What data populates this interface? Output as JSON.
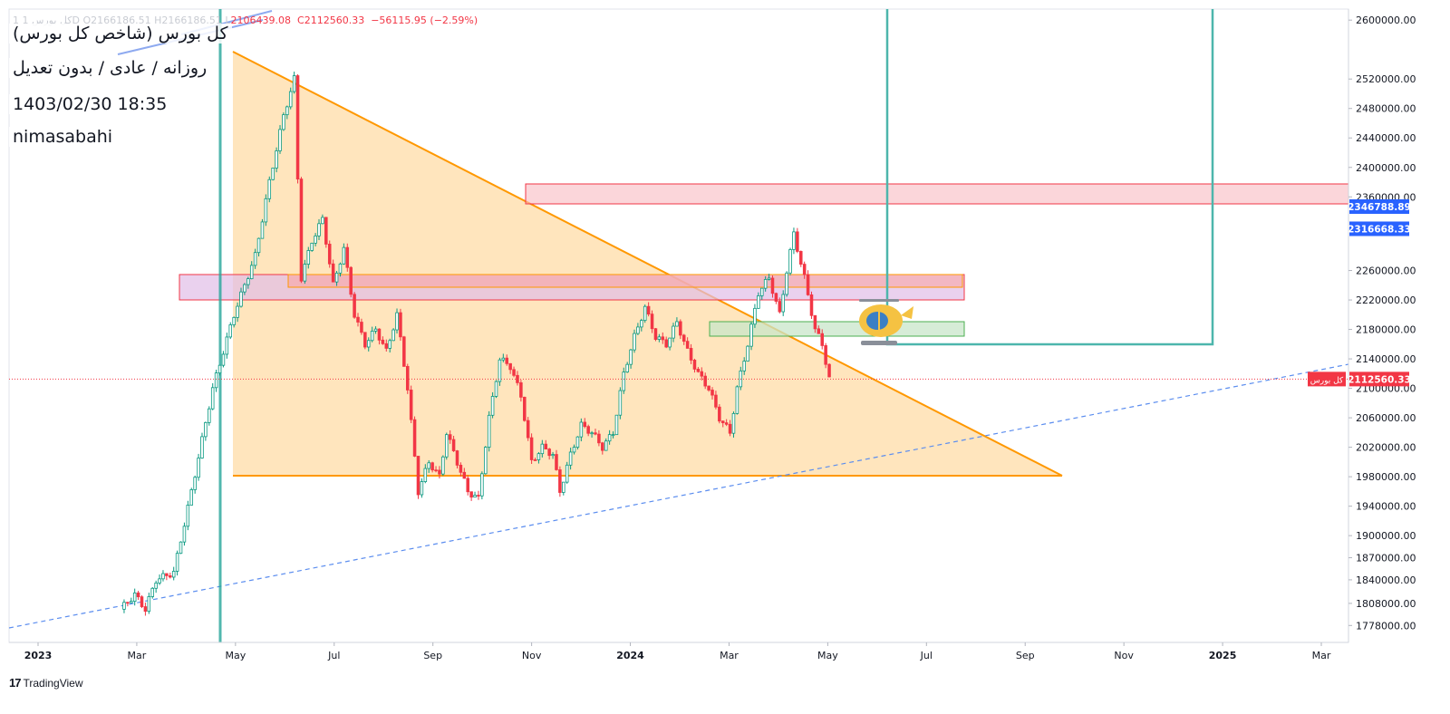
{
  "ohlc": {
    "faded": "1  کل بورس  1D  O2166186.51  H2166186.51  L",
    "low": "2106439.08",
    "close": "C2112560.33",
    "change": "−56115.95 (−2.59%)"
  },
  "info": {
    "title": "کل بورس (شاخص کل بورس)",
    "subtitle": "روزانه / عادی / بدون تعدیل",
    "datetime": "1403/02/30 18:35",
    "author": "nimasabahi"
  },
  "brand": {
    "logo": "17",
    "name": "TradingView"
  },
  "colors": {
    "up": "#089981",
    "down": "#f23645",
    "triangle_fill": "#ffe0b2",
    "triangle_line": "#ff9800",
    "trend": "#5b8def",
    "teal": "#4db6ac",
    "badge_blue": "#2962ff",
    "badge_red": "#f23645"
  },
  "chart_data": {
    "type": "candlestick",
    "ylim": [
      1755000,
      2615000
    ],
    "price_ticks": [
      2600000,
      2520000,
      2480000,
      2440000,
      2400000,
      2360000,
      2260000,
      2220000,
      2180000,
      2140000,
      2100000,
      2060000,
      2020000,
      1980000,
      1940000,
      1900000,
      1870000,
      1840000,
      1808000,
      1778000
    ],
    "price_tick_labels": [
      "2600000.00",
      "2520000.00",
      "2480000.00",
      "2440000.00",
      "2400000.00",
      "2360000.00",
      "2260000.00",
      "2220000.00",
      "2180000.00",
      "2140000.00",
      "2100000.00",
      "2060000.00",
      "2020000.00",
      "1980000.00",
      "1940000.00",
      "1900000.00",
      "1870000.00",
      "1840000.00",
      "1808000.00",
      "1778000.00"
    ],
    "time_ticks": [
      {
        "label": "2023",
        "bold": true
      },
      {
        "label": "Mar",
        "bold": false
      },
      {
        "label": "May",
        "bold": false
      },
      {
        "label": "Jul",
        "bold": false
      },
      {
        "label": "Sep",
        "bold": false
      },
      {
        "label": "Nov",
        "bold": false
      },
      {
        "label": "2024",
        "bold": true
      },
      {
        "label": "Mar",
        "bold": false
      },
      {
        "label": "May",
        "bold": false
      },
      {
        "label": "Jul",
        "bold": false
      },
      {
        "label": "Sep",
        "bold": false
      },
      {
        "label": "Nov",
        "bold": false
      },
      {
        "label": "2025",
        "bold": true
      },
      {
        "label": "Mar",
        "bold": false
      }
    ],
    "badges": [
      {
        "label": "2346788.89",
        "price": 2346788.89,
        "color": "#2962ff"
      },
      {
        "label": "2316668.33",
        "price": 2316668.33,
        "color": "#2962ff"
      },
      {
        "label": "2112560.33",
        "price": 2112560.33,
        "color": "#f23645"
      }
    ],
    "symbol_tag": "کل بورس",
    "last_price": 2112560.33,
    "close_path": [
      [
        0.0,
        1800000
      ],
      [
        0.02,
        1820000
      ],
      [
        0.035,
        1800000
      ],
      [
        0.05,
        1840000
      ],
      [
        0.075,
        1850000
      ],
      [
        0.1,
        1960000
      ],
      [
        0.13,
        2100000
      ],
      [
        0.16,
        2200000
      ],
      [
        0.19,
        2280000
      ],
      [
        0.21,
        2380000
      ],
      [
        0.23,
        2470000
      ],
      [
        0.245,
        2520000
      ],
      [
        0.255,
        2250000
      ],
      [
        0.27,
        2300000
      ],
      [
        0.285,
        2330000
      ],
      [
        0.3,
        2240000
      ],
      [
        0.315,
        2290000
      ],
      [
        0.33,
        2200000
      ],
      [
        0.345,
        2160000
      ],
      [
        0.36,
        2180000
      ],
      [
        0.375,
        2150000
      ],
      [
        0.39,
        2200000
      ],
      [
        0.405,
        2100000
      ],
      [
        0.42,
        1960000
      ],
      [
        0.435,
        2000000
      ],
      [
        0.45,
        1980000
      ],
      [
        0.46,
        2040000
      ],
      [
        0.475,
        2000000
      ],
      [
        0.49,
        1960000
      ],
      [
        0.505,
        1950000
      ],
      [
        0.52,
        2060000
      ],
      [
        0.535,
        2140000
      ],
      [
        0.55,
        2130000
      ],
      [
        0.565,
        2090000
      ],
      [
        0.58,
        2000000
      ],
      [
        0.595,
        2020000
      ],
      [
        0.61,
        2010000
      ],
      [
        0.62,
        1960000
      ],
      [
        0.635,
        2010000
      ],
      [
        0.65,
        2050000
      ],
      [
        0.665,
        2040000
      ],
      [
        0.68,
        2020000
      ],
      [
        0.695,
        2040000
      ],
      [
        0.71,
        2120000
      ],
      [
        0.725,
        2170000
      ],
      [
        0.74,
        2210000
      ],
      [
        0.755,
        2170000
      ],
      [
        0.77,
        2160000
      ],
      [
        0.785,
        2190000
      ],
      [
        0.8,
        2150000
      ],
      [
        0.815,
        2120000
      ],
      [
        0.83,
        2100000
      ],
      [
        0.845,
        2060000
      ],
      [
        0.86,
        2040000
      ],
      [
        0.87,
        2100000
      ],
      [
        0.885,
        2160000
      ],
      [
        0.9,
        2230000
      ],
      [
        0.915,
        2250000
      ],
      [
        0.93,
        2200000
      ],
      [
        0.94,
        2260000
      ],
      [
        0.95,
        2310000
      ],
      [
        0.965,
        2250000
      ],
      [
        0.98,
        2180000
      ],
      [
        0.99,
        2160000
      ],
      [
        1.0,
        2112560
      ]
    ]
  }
}
